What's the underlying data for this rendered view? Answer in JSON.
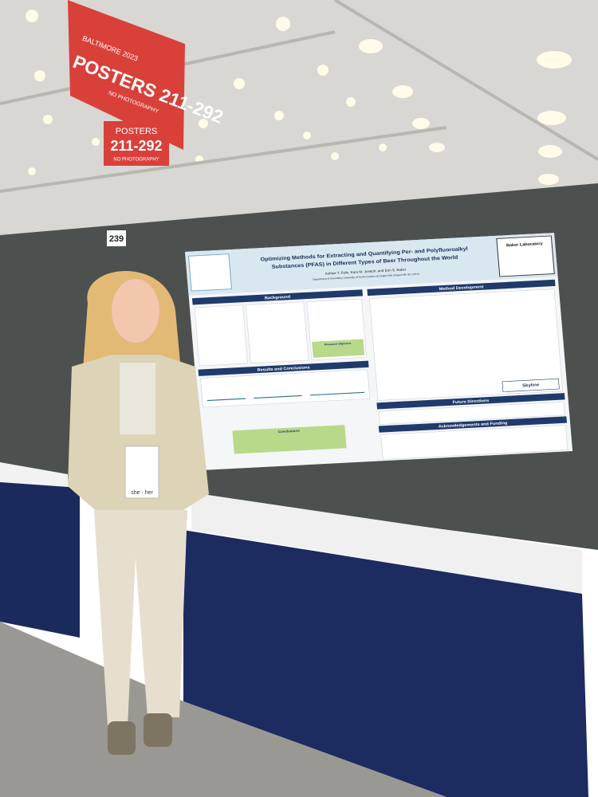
{
  "banner": {
    "year": "BALTIMORE 2023",
    "title": "POSTERS 211-292",
    "note": "NO PHOTOGRAPHY"
  },
  "sign": {
    "title": "POSTERS",
    "range": "211-292",
    "note": "NO PHOTOGRAPHY"
  },
  "booth_number": "239",
  "poster": {
    "title_line1": "Optimizing Methods for Extracting and Quantifying Per- and Polyfluoroalkyl",
    "title_line2": "Substances (PFAS) in Different Types of Beer Throughout the World",
    "authors": "Ashlee T. Falls, Kara M. Joseph, and Erin S. Baker",
    "affiliation": "Department of Chemistry, University of North Carolina at Chapel Hill, Chapel Hill, NC 27514",
    "lab": "Baker Laboratory",
    "sections": [
      "Background",
      "Method Development",
      "Results and Conclusions",
      "Future Directions",
      "Acknowledgements and Funding"
    ],
    "objective": "Research Objective",
    "conclusions": "Conclusions",
    "software": "Skyline"
  },
  "badge": {
    "pronouns": "she · her"
  }
}
